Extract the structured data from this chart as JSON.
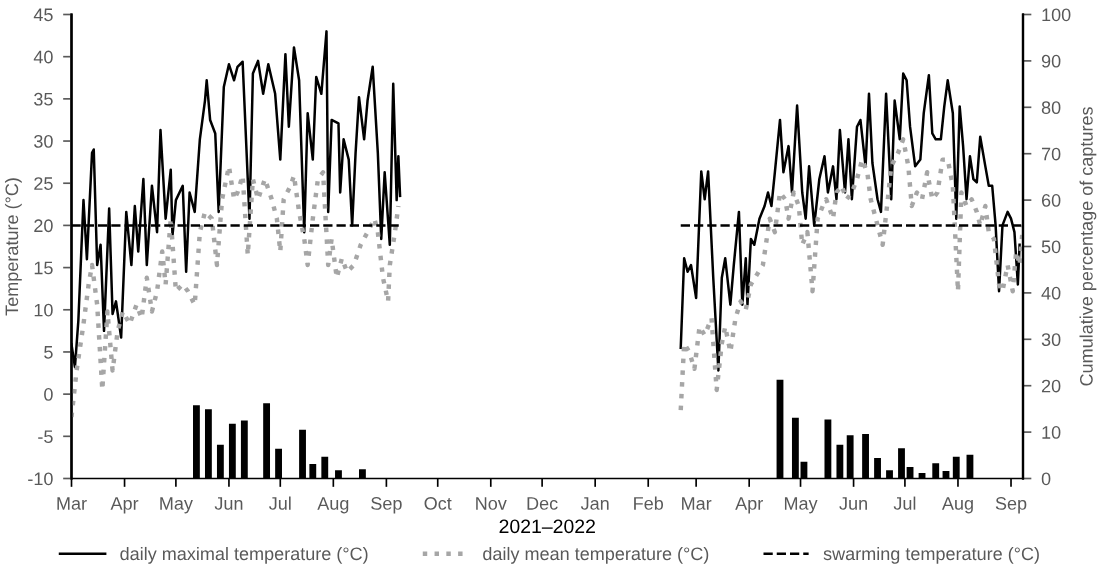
{
  "chart_data": {
    "type": "line",
    "xlabel": "2021–2022",
    "ylabel": "Temperature (°C)",
    "y2label": "Cumulative percentage of captures",
    "xlim": [
      "2021-03-01",
      "2022-09-08"
    ],
    "xticks": [
      {
        "value": "2021-03-01",
        "label": "Mar"
      },
      {
        "value": "2021-04-01",
        "label": "Apr"
      },
      {
        "value": "2021-05-01",
        "label": "May"
      },
      {
        "value": "2021-06-01",
        "label": "Jun"
      },
      {
        "value": "2021-07-01",
        "label": "Jul"
      },
      {
        "value": "2021-08-01",
        "label": "Aug"
      },
      {
        "value": "2021-09-01",
        "label": "Sep"
      },
      {
        "value": "2021-10-01",
        "label": "Oct"
      },
      {
        "value": "2021-11-01",
        "label": "Nov"
      },
      {
        "value": "2021-12-01",
        "label": "Dec"
      },
      {
        "value": "2022-01-01",
        "label": "Jan"
      },
      {
        "value": "2022-02-01",
        "label": "Feb"
      },
      {
        "value": "2022-03-01",
        "label": "Mar"
      },
      {
        "value": "2022-04-01",
        "label": "Apr"
      },
      {
        "value": "2022-05-01",
        "label": "May"
      },
      {
        "value": "2022-06-01",
        "label": "Jun"
      },
      {
        "value": "2022-07-01",
        "label": "Jul"
      },
      {
        "value": "2022-08-01",
        "label": "Aug"
      },
      {
        "value": "2022-09-01",
        "label": "Sep"
      }
    ],
    "ylim": [
      -10,
      45
    ],
    "yticks": [
      -10,
      -5,
      0,
      5,
      10,
      15,
      20,
      25,
      30,
      35,
      40,
      45
    ],
    "y2lim": [
      0,
      100
    ],
    "y2ticks": [
      0,
      10,
      20,
      30,
      40,
      50,
      60,
      70,
      80,
      90,
      100
    ],
    "grid": false,
    "legend": "bottom",
    "marker": "none",
    "series": [
      {
        "type": "bar",
        "axis": "y2",
        "color": "#000000",
        "x": [
          "2021-05-13",
          "2021-05-20",
          "2021-05-27",
          "2021-06-03",
          "2021-06-10",
          "2021-06-23",
          "2021-06-30",
          "2021-07-14",
          "2021-07-20",
          "2021-07-27",
          "2021-08-04",
          "2021-08-18",
          "2022-04-19",
          "2022-04-28",
          "2022-05-03",
          "2022-05-17",
          "2022-05-24",
          "2022-05-30",
          "2022-06-08",
          "2022-06-15",
          "2022-06-22",
          "2022-06-29",
          "2022-07-04",
          "2022-07-11",
          "2022-07-19",
          "2022-07-25",
          "2022-07-31",
          "2022-08-08"
        ],
        "values": [
          15.8,
          14.9,
          7.3,
          11.8,
          12.5,
          16.2,
          6.4,
          10.5,
          3.1,
          4.7,
          1.8,
          2,
          21.3,
          13.1,
          3.6,
          12.7,
          7.3,
          9.3,
          9.6,
          4.4,
          1.8,
          6.5,
          2.5,
          1.2,
          3.3,
          1.6,
          4.7,
          5.1
        ]
      },
      {
        "name": "daily maximal temperature (°C)",
        "color": "#000000",
        "line_style": "solid",
        "x": [
          "2021-03-01",
          "2021-03-03",
          "2021-03-05",
          "2021-03-08",
          "2021-03-10",
          "2021-03-13",
          "2021-03-14",
          "2021-03-16",
          "2021-03-18",
          "2021-03-20",
          "2021-03-23",
          "2021-03-25",
          "2021-03-27",
          "2021-03-30",
          "2021-04-02",
          "2021-04-05",
          "2021-04-07",
          "2021-04-09",
          "2021-04-12",
          "2021-04-14",
          "2021-04-17",
          "2021-04-20",
          "2021-04-22",
          "2021-04-25",
          "2021-04-28",
          "2021-04-29",
          "2021-05-01",
          "2021-05-05",
          "2021-05-07",
          "2021-05-09",
          "2021-05-12",
          "2021-05-15",
          "2021-05-18",
          "2021-05-19",
          "2021-05-21",
          "2021-05-24",
          "2021-05-26",
          "2021-05-29",
          "2021-06-01",
          "2021-06-04",
          "2021-06-06",
          "2021-06-09",
          "2021-06-13",
          "2021-06-15",
          "2021-06-18",
          "2021-06-21",
          "2021-06-24",
          "2021-06-28",
          "2021-07-01",
          "2021-07-04",
          "2021-07-06",
          "2021-07-09",
          "2021-07-12",
          "2021-07-15",
          "2021-07-17",
          "2021-07-20",
          "2021-07-22",
          "2021-07-25",
          "2021-07-28",
          "2021-07-29",
          "2021-07-31",
          "2021-08-04",
          "2021-08-05",
          "2021-08-07",
          "2021-08-10",
          "2021-08-12",
          "2021-08-14",
          "2021-08-16",
          "2021-08-19",
          "2021-08-21",
          "2021-08-24",
          "2021-08-27",
          "2021-08-29",
          "2021-08-31",
          "2021-09-03",
          "2021-09-05",
          "2021-09-07",
          "2021-09-08",
          "2021-09-09",
          "2021-12-01",
          "2022-02-20",
          "2022-02-22",
          "2022-02-24",
          "2022-02-26",
          "2022-03-01",
          "2022-03-04",
          "2022-03-06",
          "2022-03-08",
          "2022-03-11",
          "2022-03-14",
          "2022-03-16",
          "2022-03-18",
          "2022-03-21",
          "2022-03-23",
          "2022-03-26",
          "2022-03-28",
          "2022-03-30",
          "2022-03-31",
          "2022-04-02",
          "2022-04-04",
          "2022-04-07",
          "2022-04-10",
          "2022-04-12",
          "2022-04-14",
          "2022-04-16",
          "2022-04-19",
          "2022-04-21",
          "2022-04-24",
          "2022-04-26",
          "2022-04-29",
          "2022-05-02",
          "2022-05-04",
          "2022-05-06",
          "2022-05-09",
          "2022-05-12",
          "2022-05-15",
          "2022-05-17",
          "2022-05-20",
          "2022-05-22",
          "2022-05-24",
          "2022-05-27",
          "2022-05-29",
          "2022-05-31",
          "2022-06-03",
          "2022-06-05",
          "2022-06-08",
          "2022-06-10",
          "2022-06-12",
          "2022-06-15",
          "2022-06-17",
          "2022-06-20",
          "2022-06-23",
          "2022-06-25",
          "2022-06-28",
          "2022-06-30",
          "2022-07-02",
          "2022-07-04",
          "2022-07-07",
          "2022-07-10",
          "2022-07-12",
          "2022-07-15",
          "2022-07-17",
          "2022-07-19",
          "2022-07-22",
          "2022-07-24",
          "2022-07-26",
          "2022-07-29",
          "2022-07-31",
          "2022-08-02",
          "2022-08-04",
          "2022-08-06",
          "2022-08-08",
          "2022-08-10",
          "2022-08-12",
          "2022-08-14",
          "2022-08-17",
          "2022-08-19",
          "2022-08-21",
          "2022-08-23",
          "2022-08-25",
          "2022-08-27",
          "2022-08-30",
          "2022-09-01",
          "2022-09-03",
          "2022-09-05",
          "2022-09-06"
        ],
        "values": [
          5.9,
          3.2,
          8.7,
          23,
          16,
          28.6,
          29,
          15.3,
          17.7,
          7.5,
          22,
          9.5,
          11,
          6.7,
          21.6,
          15.3,
          22.3,
          16.9,
          25.5,
          15.3,
          24.7,
          19.2,
          31.3,
          20.8,
          26.6,
          18.8,
          23,
          24.7,
          14.5,
          23.9,
          21.6,
          30.2,
          34.8,
          37.2,
          32.5,
          30.9,
          21.6,
          36.4,
          39.1,
          37.2,
          38.8,
          39.4,
          20.8,
          38,
          39.5,
          35.6,
          39.1,
          35.6,
          27.8,
          40.3,
          31.7,
          41.1,
          37.2,
          19.2,
          33.3,
          27.8,
          37.6,
          35.6,
          43,
          21.6,
          32.5,
          32.1,
          23.9,
          30.2,
          27.8,
          20,
          28.6,
          35.2,
          30.2,
          34.8,
          38.8,
          28.6,
          18.4,
          26.3,
          17.7,
          36.8,
          23,
          28.2,
          23.5,
          null,
          5.5,
          16.1,
          14.5,
          15.3,
          11.4,
          26.4,
          23.1,
          26.4,
          13.8,
          2.8,
          13.8,
          16.1,
          10.6,
          15.3,
          21.6,
          10.6,
          16.1,
          10.6,
          18.4,
          17.7,
          20.8,
          22.3,
          23.9,
          22.3,
          26.3,
          32.5,
          26.3,
          29.4,
          23.9,
          34.2,
          23.9,
          20.8,
          27,
          20,
          25.5,
          28.2,
          23.9,
          27,
          23.1,
          31.3,
          23.9,
          30.2,
          23.1,
          31.7,
          32.5,
          27,
          35.6,
          27.4,
          23.1,
          21.6,
          35.6,
          23.1,
          34.8,
          30.2,
          38,
          37.2,
          31.7,
          27,
          27.8,
          33.3,
          37.8,
          30.9,
          30.2,
          30.2,
          34.1,
          37.2,
          33.3,
          20.8,
          34.1,
          29.4,
          23.1,
          28.2,
          25.5,
          25.1,
          30.5,
          27,
          24.7,
          24.7,
          20,
          12.2,
          20,
          21.6,
          20.8,
          19.2,
          13,
          17.7
        ]
      },
      {
        "name": "daily mean temperature (°C)",
        "color": "#a6a6a6",
        "line_style": "dotted",
        "x": [
          "2021-03-01",
          "2021-03-04",
          "2021-03-08",
          "2021-03-11",
          "2021-03-13",
          "2021-03-16",
          "2021-03-19",
          "2021-03-22",
          "2021-03-25",
          "2021-03-28",
          "2021-03-31",
          "2021-04-04",
          "2021-04-08",
          "2021-04-11",
          "2021-04-14",
          "2021-04-17",
          "2021-04-20",
          "2021-04-23",
          "2021-04-25",
          "2021-04-28",
          "2021-05-01",
          "2021-05-05",
          "2021-05-08",
          "2021-05-12",
          "2021-05-15",
          "2021-05-18",
          "2021-05-22",
          "2021-05-25",
          "2021-05-28",
          "2021-06-01",
          "2021-06-04",
          "2021-06-06",
          "2021-06-09",
          "2021-06-12",
          "2021-06-15",
          "2021-06-18",
          "2021-06-22",
          "2021-06-26",
          "2021-06-29",
          "2021-07-01",
          "2021-07-03",
          "2021-07-07",
          "2021-07-09",
          "2021-07-12",
          "2021-07-15",
          "2021-07-17",
          "2021-07-20",
          "2021-07-23",
          "2021-07-26",
          "2021-07-29",
          "2021-07-31",
          "2021-08-03",
          "2021-08-06",
          "2021-08-09",
          "2021-08-13",
          "2021-08-17",
          "2021-08-21",
          "2021-08-25",
          "2021-08-27",
          "2021-08-30",
          "2021-09-02",
          "2021-09-03",
          "2021-09-06",
          "2021-09-08",
          "2021-12-01",
          "2022-02-20",
          "2022-02-22",
          "2022-02-25",
          "2022-02-28",
          "2022-03-03",
          "2022-03-06",
          "2022-03-10",
          "2022-03-13",
          "2022-03-16",
          "2022-03-18",
          "2022-03-21",
          "2022-03-24",
          "2022-03-27",
          "2022-03-30",
          "2022-04-02",
          "2022-04-05",
          "2022-04-09",
          "2022-04-13",
          "2022-04-16",
          "2022-04-19",
          "2022-04-22",
          "2022-04-24",
          "2022-04-27",
          "2022-04-30",
          "2022-05-02",
          "2022-05-05",
          "2022-05-08",
          "2022-05-11",
          "2022-05-14",
          "2022-05-16",
          "2022-05-20",
          "2022-05-22",
          "2022-05-25",
          "2022-05-28",
          "2022-05-31",
          "2022-06-03",
          "2022-06-06",
          "2022-06-09",
          "2022-06-11",
          "2022-06-14",
          "2022-06-18",
          "2022-06-21",
          "2022-06-23",
          "2022-06-27",
          "2022-06-30",
          "2022-07-03",
          "2022-07-05",
          "2022-07-08",
          "2022-07-11",
          "2022-07-14",
          "2022-07-17",
          "2022-07-20",
          "2022-07-23",
          "2022-07-26",
          "2022-07-29",
          "2022-08-01",
          "2022-08-03",
          "2022-08-06",
          "2022-08-09",
          "2022-08-12",
          "2022-08-14",
          "2022-08-17",
          "2022-08-19",
          "2022-08-22",
          "2022-08-25",
          "2022-08-27",
          "2022-08-30",
          "2022-09-02",
          "2022-09-04",
          "2022-09-06",
          "2022-09-08"
        ],
        "values": [
          -2.7,
          2.8,
          8.3,
          13,
          15.3,
          10.6,
          0.5,
          9.8,
          2.8,
          7.5,
          9.8,
          8.3,
          10.6,
          9,
          13.8,
          9.8,
          12.2,
          16.9,
          13,
          20.8,
          12.2,
          13,
          12.2,
          10.6,
          19.2,
          21.6,
          20.8,
          15.3,
          23.1,
          27,
          23.1,
          23.9,
          25.9,
          16.5,
          25.5,
          23.1,
          25.5,
          23.1,
          20.8,
          16.9,
          23.1,
          24.7,
          25.9,
          21.6,
          18.4,
          15.3,
          20.8,
          25.5,
          26.3,
          15.3,
          18.4,
          13.8,
          16.1,
          14.5,
          15.3,
          17.7,
          19.2,
          20.8,
          19.2,
          13.8,
          11,
          15.3,
          19.2,
          22.3,
          null,
          -1.9,
          6,
          5,
          3,
          8,
          7,
          9,
          0.5,
          6,
          8,
          5,
          9,
          11,
          10,
          13,
          14,
          15.3,
          20.8,
          19.2,
          23.9,
          23.1,
          20.8,
          23.9,
          22.3,
          17.7,
          19.2,
          12.2,
          20.8,
          22.3,
          23.1,
          20.8,
          23.9,
          24.7,
          23.1,
          23.9,
          25.5,
          27.8,
          26.3,
          23.1,
          20.8,
          17.7,
          23.1,
          27,
          28.6,
          30.2,
          27,
          22.3,
          23.9,
          23.1,
          26.3,
          23.1,
          23.9,
          27.8,
          27.8,
          24.7,
          12.2,
          23.9,
          22.3,
          23.1,
          21.6,
          20,
          22.3,
          19.2,
          18.4,
          13,
          12.2,
          15.3,
          12.2,
          16.9,
          15.3,
          20
        ]
      },
      {
        "name": "swarming temperature (°C)",
        "color": "#000000",
        "line_style": "dashed",
        "x": [
          "2021-03-01",
          "2021-09-09",
          "2021-12-01",
          "2022-02-20",
          "2022-09-08"
        ],
        "values": [
          20,
          20,
          null,
          20,
          20
        ]
      }
    ]
  }
}
